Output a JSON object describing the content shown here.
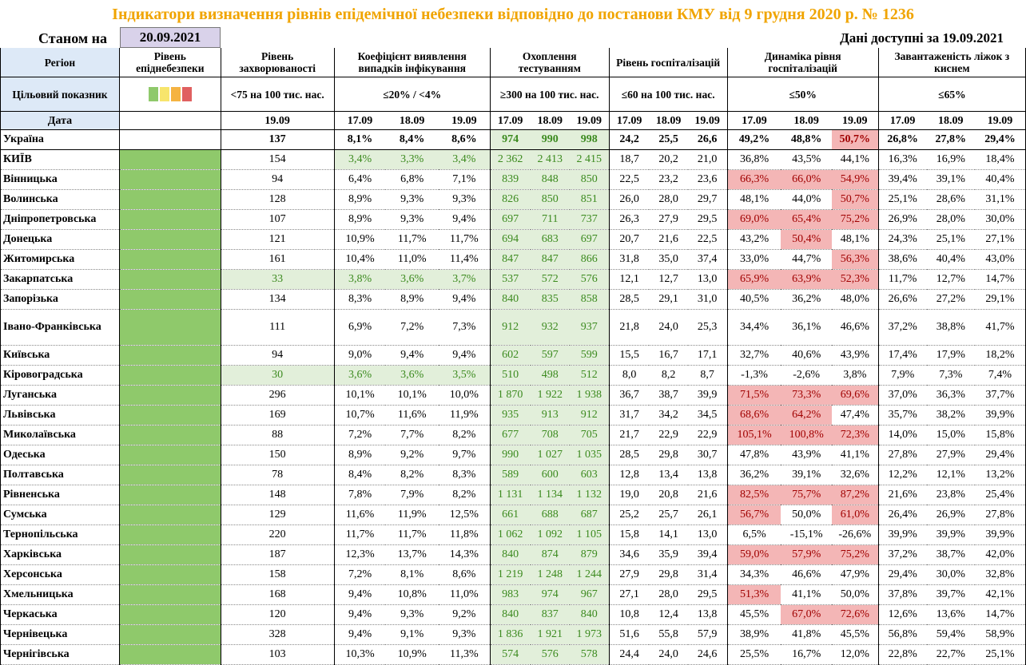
{
  "title": "Індикатори визначення рівнів епідемічної небезпеки відповідно до постанови КМУ від 9 грудня 2020 р. № 1236",
  "as_of_label": "Станом на",
  "as_of_date": "20.09.2021",
  "available": "Дані доступні за  19.09.2021",
  "headers": {
    "region": "Регіон",
    "danger_level": "Рівень епіднебезпеки",
    "incidence": "Рівень захворюваності",
    "detection": "Коефіцієнт виявлення випадків інфікування",
    "testing": "Охоплення тестуванням",
    "hosp_level": "Рівень госпіталізацій",
    "hosp_dynamics": "Динаміка рівня госпіталізацій",
    "bed_load": "Завантаженість ліжок з киснем"
  },
  "targets": {
    "label": "Цільовий показник",
    "incidence": "<75 на 100 тис. нас.",
    "detection": "≤20% / <4%",
    "testing": "≥300 на 100 тис. нас.",
    "hosp_level": "≤60 на 100 тис. нас.",
    "hosp_dynamics": "≤50%",
    "bed_load": "≤65%"
  },
  "level_colors": [
    "#8fc96b",
    "#f7e56c",
    "#f5b342",
    "#e06060"
  ],
  "dates": {
    "label": "Дата",
    "incidence": "19.09",
    "triple": [
      "17.09",
      "18.09",
      "19.09"
    ]
  },
  "ukraine": {
    "name": "Україна",
    "incidence": "137",
    "detection": [
      "8,1%",
      "8,4%",
      "8,6%"
    ],
    "testing": [
      "974",
      "990",
      "998"
    ],
    "hosp_level": [
      "24,2",
      "25,5",
      "26,6"
    ],
    "hosp_dynamics": [
      "49,2%",
      "48,8%",
      "50,7%"
    ],
    "bed_load": [
      "26,8%",
      "27,8%",
      "29,4%"
    ]
  },
  "regions": [
    {
      "name": "КИЇВ",
      "incidence": "154",
      "detection": [
        "3,4%",
        "3,3%",
        "3,4%"
      ],
      "testing": [
        "2 362",
        "2 413",
        "2 415"
      ],
      "hosp_level": [
        "18,7",
        "20,2",
        "21,0"
      ],
      "hosp_dynamics": [
        "36,8%",
        "43,5%",
        "44,1%"
      ],
      "bed_load": [
        "16,3%",
        "16,9%",
        "18,4%"
      ]
    },
    {
      "name": "Вінницька",
      "incidence": "94",
      "detection": [
        "6,4%",
        "6,8%",
        "7,1%"
      ],
      "testing": [
        "839",
        "848",
        "850"
      ],
      "hosp_level": [
        "22,5",
        "23,2",
        "23,6"
      ],
      "hosp_dynamics": [
        "66,3%",
        "66,0%",
        "54,9%"
      ],
      "bed_load": [
        "39,4%",
        "39,1%",
        "40,4%"
      ]
    },
    {
      "name": "Волинська",
      "incidence": "128",
      "detection": [
        "8,9%",
        "9,3%",
        "9,3%"
      ],
      "testing": [
        "826",
        "850",
        "851"
      ],
      "hosp_level": [
        "26,0",
        "28,0",
        "29,7"
      ],
      "hosp_dynamics": [
        "48,1%",
        "44,0%",
        "50,7%"
      ],
      "bed_load": [
        "25,1%",
        "28,6%",
        "31,1%"
      ]
    },
    {
      "name": "Дніпропетровська",
      "incidence": "107",
      "detection": [
        "8,9%",
        "9,3%",
        "9,4%"
      ],
      "testing": [
        "697",
        "711",
        "737"
      ],
      "hosp_level": [
        "26,3",
        "27,9",
        "29,5"
      ],
      "hosp_dynamics": [
        "69,0%",
        "65,4%",
        "75,2%"
      ],
      "bed_load": [
        "26,9%",
        "28,0%",
        "30,0%"
      ]
    },
    {
      "name": "Донецька",
      "incidence": "121",
      "detection": [
        "10,9%",
        "11,7%",
        "11,7%"
      ],
      "testing": [
        "694",
        "683",
        "697"
      ],
      "hosp_level": [
        "20,7",
        "21,6",
        "22,5"
      ],
      "hosp_dynamics": [
        "43,2%",
        "50,4%",
        "48,1%"
      ],
      "bed_load": [
        "24,3%",
        "25,1%",
        "27,1%"
      ]
    },
    {
      "name": "Житомирська",
      "incidence": "161",
      "detection": [
        "10,4%",
        "11,0%",
        "11,4%"
      ],
      "testing": [
        "847",
        "847",
        "866"
      ],
      "hosp_level": [
        "31,8",
        "35,0",
        "37,4"
      ],
      "hosp_dynamics": [
        "33,0%",
        "44,7%",
        "56,3%"
      ],
      "bed_load": [
        "38,6%",
        "40,4%",
        "43,0%"
      ]
    },
    {
      "name": "Закарпатська",
      "incidence": "33",
      "detection": [
        "3,8%",
        "3,6%",
        "3,7%"
      ],
      "testing": [
        "537",
        "572",
        "576"
      ],
      "hosp_level": [
        "12,1",
        "12,7",
        "13,0"
      ],
      "hosp_dynamics": [
        "65,9%",
        "63,9%",
        "52,3%"
      ],
      "bed_load": [
        "11,7%",
        "12,7%",
        "14,7%"
      ]
    },
    {
      "name": "Запорізька",
      "incidence": "134",
      "detection": [
        "8,3%",
        "8,9%",
        "9,4%"
      ],
      "testing": [
        "840",
        "835",
        "858"
      ],
      "hosp_level": [
        "28,5",
        "29,1",
        "31,0"
      ],
      "hosp_dynamics": [
        "40,5%",
        "36,2%",
        "48,0%"
      ],
      "bed_load": [
        "26,6%",
        "27,2%",
        "29,1%"
      ]
    },
    {
      "name": "Івано-Франківська",
      "incidence": "111",
      "detection": [
        "6,9%",
        "7,2%",
        "7,3%"
      ],
      "testing": [
        "912",
        "932",
        "937"
      ],
      "hosp_level": [
        "21,8",
        "24,0",
        "25,3"
      ],
      "hosp_dynamics": [
        "34,4%",
        "36,1%",
        "46,6%"
      ],
      "bed_load": [
        "37,2%",
        "38,8%",
        "41,7%"
      ]
    },
    {
      "name": "Київська",
      "incidence": "94",
      "detection": [
        "9,0%",
        "9,4%",
        "9,4%"
      ],
      "testing": [
        "602",
        "597",
        "599"
      ],
      "hosp_level": [
        "15,5",
        "16,7",
        "17,1"
      ],
      "hosp_dynamics": [
        "32,7%",
        "40,6%",
        "43,9%"
      ],
      "bed_load": [
        "17,4%",
        "17,9%",
        "18,2%"
      ]
    },
    {
      "name": "Кіровоградська",
      "incidence": "30",
      "detection": [
        "3,6%",
        "3,6%",
        "3,5%"
      ],
      "testing": [
        "510",
        "498",
        "512"
      ],
      "hosp_level": [
        "8,0",
        "8,2",
        "8,7"
      ],
      "hosp_dynamics": [
        "-1,3%",
        "-2,6%",
        "3,8%"
      ],
      "bed_load": [
        "7,9%",
        "7,3%",
        "7,4%"
      ]
    },
    {
      "name": "Луганська",
      "incidence": "296",
      "detection": [
        "10,1%",
        "10,1%",
        "10,0%"
      ],
      "testing": [
        "1 870",
        "1 922",
        "1 938"
      ],
      "hosp_level": [
        "36,7",
        "38,7",
        "39,9"
      ],
      "hosp_dynamics": [
        "71,5%",
        "73,3%",
        "69,6%"
      ],
      "bed_load": [
        "37,0%",
        "36,3%",
        "37,7%"
      ]
    },
    {
      "name": "Львівська",
      "incidence": "169",
      "detection": [
        "10,7%",
        "11,6%",
        "11,9%"
      ],
      "testing": [
        "935",
        "913",
        "912"
      ],
      "hosp_level": [
        "31,7",
        "34,2",
        "34,5"
      ],
      "hosp_dynamics": [
        "68,6%",
        "64,2%",
        "47,4%"
      ],
      "bed_load": [
        "35,7%",
        "38,2%",
        "39,9%"
      ]
    },
    {
      "name": "Миколаївська",
      "incidence": "88",
      "detection": [
        "7,2%",
        "7,7%",
        "8,2%"
      ],
      "testing": [
        "677",
        "708",
        "705"
      ],
      "hosp_level": [
        "21,7",
        "22,9",
        "22,9"
      ],
      "hosp_dynamics": [
        "105,1%",
        "100,8%",
        "72,3%"
      ],
      "bed_load": [
        "14,0%",
        "15,0%",
        "15,8%"
      ]
    },
    {
      "name": "Одеська",
      "incidence": "150",
      "detection": [
        "8,9%",
        "9,2%",
        "9,7%"
      ],
      "testing": [
        "990",
        "1 027",
        "1 035"
      ],
      "hosp_level": [
        "28,5",
        "29,8",
        "30,7"
      ],
      "hosp_dynamics": [
        "47,8%",
        "43,9%",
        "41,1%"
      ],
      "bed_load": [
        "27,8%",
        "27,9%",
        "29,4%"
      ]
    },
    {
      "name": "Полтавська",
      "incidence": "78",
      "detection": [
        "8,4%",
        "8,2%",
        "8,3%"
      ],
      "testing": [
        "589",
        "600",
        "603"
      ],
      "hosp_level": [
        "12,8",
        "13,4",
        "13,8"
      ],
      "hosp_dynamics": [
        "36,2%",
        "39,1%",
        "32,6%"
      ],
      "bed_load": [
        "12,2%",
        "12,1%",
        "13,2%"
      ]
    },
    {
      "name": "Рівненська",
      "incidence": "148",
      "detection": [
        "7,8%",
        "7,9%",
        "8,2%"
      ],
      "testing": [
        "1 131",
        "1 134",
        "1 132"
      ],
      "hosp_level": [
        "19,0",
        "20,8",
        "21,6"
      ],
      "hosp_dynamics": [
        "82,5%",
        "75,7%",
        "87,2%"
      ],
      "bed_load": [
        "21,6%",
        "23,8%",
        "25,4%"
      ]
    },
    {
      "name": "Сумська",
      "incidence": "129",
      "detection": [
        "11,6%",
        "11,9%",
        "12,5%"
      ],
      "testing": [
        "661",
        "688",
        "687"
      ],
      "hosp_level": [
        "25,2",
        "25,7",
        "26,1"
      ],
      "hosp_dynamics": [
        "56,7%",
        "50,0%",
        "61,0%"
      ],
      "bed_load": [
        "26,4%",
        "26,9%",
        "27,8%"
      ]
    },
    {
      "name": "Тернопільська",
      "incidence": "220",
      "detection": [
        "11,7%",
        "11,7%",
        "11,8%"
      ],
      "testing": [
        "1 062",
        "1 092",
        "1 105"
      ],
      "hosp_level": [
        "15,8",
        "14,1",
        "13,0"
      ],
      "hosp_dynamics": [
        "6,5%",
        "-15,1%",
        "-26,6%"
      ],
      "bed_load": [
        "39,9%",
        "39,9%",
        "39,9%"
      ]
    },
    {
      "name": "Харківська",
      "incidence": "187",
      "detection": [
        "12,3%",
        "13,7%",
        "14,3%"
      ],
      "testing": [
        "840",
        "874",
        "879"
      ],
      "hosp_level": [
        "34,6",
        "35,9",
        "39,4"
      ],
      "hosp_dynamics": [
        "59,0%",
        "57,9%",
        "75,2%"
      ],
      "bed_load": [
        "37,2%",
        "38,7%",
        "42,0%"
      ]
    },
    {
      "name": "Херсонська",
      "incidence": "158",
      "detection": [
        "7,2%",
        "8,1%",
        "8,6%"
      ],
      "testing": [
        "1 219",
        "1 248",
        "1 244"
      ],
      "hosp_level": [
        "27,9",
        "29,8",
        "31,4"
      ],
      "hosp_dynamics": [
        "34,3%",
        "46,6%",
        "47,9%"
      ],
      "bed_load": [
        "29,4%",
        "30,0%",
        "32,8%"
      ]
    },
    {
      "name": "Хмельницька",
      "incidence": "168",
      "detection": [
        "9,4%",
        "10,8%",
        "11,0%"
      ],
      "testing": [
        "983",
        "974",
        "967"
      ],
      "hosp_level": [
        "27,1",
        "28,0",
        "29,5"
      ],
      "hosp_dynamics": [
        "51,3%",
        "41,1%",
        "50,0%"
      ],
      "bed_load": [
        "37,8%",
        "39,7%",
        "42,1%"
      ]
    },
    {
      "name": "Черкаська",
      "incidence": "120",
      "detection": [
        "9,4%",
        "9,3%",
        "9,2%"
      ],
      "testing": [
        "840",
        "837",
        "840"
      ],
      "hosp_level": [
        "10,8",
        "12,4",
        "13,8"
      ],
      "hosp_dynamics": [
        "45,5%",
        "67,0%",
        "72,6%"
      ],
      "bed_load": [
        "12,6%",
        "13,6%",
        "14,7%"
      ]
    },
    {
      "name": "Чернівецька",
      "incidence": "328",
      "detection": [
        "9,4%",
        "9,1%",
        "9,3%"
      ],
      "testing": [
        "1 836",
        "1 921",
        "1 973"
      ],
      "hosp_level": [
        "51,6",
        "55,8",
        "57,9"
      ],
      "hosp_dynamics": [
        "38,9%",
        "41,8%",
        "45,5%"
      ],
      "bed_load": [
        "56,8%",
        "59,4%",
        "58,9%"
      ]
    },
    {
      "name": "Чернігівська",
      "incidence": "103",
      "detection": [
        "10,3%",
        "10,9%",
        "11,3%"
      ],
      "testing": [
        "574",
        "576",
        "578"
      ],
      "hosp_level": [
        "24,4",
        "24,0",
        "24,6"
      ],
      "hosp_dynamics": [
        "25,5%",
        "16,7%",
        "12,0%"
      ],
      "bed_load": [
        "22,8%",
        "22,7%",
        "25,1%"
      ]
    }
  ]
}
